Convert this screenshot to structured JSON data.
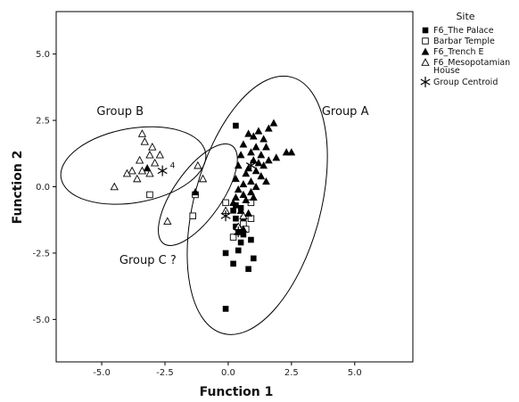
{
  "chart_data": {
    "type": "scatter",
    "xlabel": "Function 1",
    "ylabel": "Function 2",
    "xlim": [
      -6.8,
      7.3
    ],
    "ylim": [
      -6.6,
      6.6
    ],
    "x_ticks": [
      "-5.0",
      "-2.5",
      "0.0",
      "2.5",
      "5.0"
    ],
    "y_ticks": [
      "5.0",
      "2.5",
      "0.0",
      "-2.5",
      "-5.0"
    ],
    "x_tick_values": [
      -5,
      -2.5,
      0,
      2.5,
      5
    ],
    "y_tick_values": [
      5,
      2.5,
      0,
      -2.5,
      -5
    ],
    "grid": false,
    "legend": {
      "title": "Site",
      "placement": "right",
      "entries": [
        {
          "label": "F6_The Palace",
          "marker": "filled-square"
        },
        {
          "label": "Barbar Temple",
          "marker": "open-square"
        },
        {
          "label": "F6_Trench E",
          "marker": "filled-triangle"
        },
        {
          "label": "F6_Mesopotamian House",
          "marker": "open-triangle"
        },
        {
          "label": "Group Centroid",
          "marker": "star"
        }
      ]
    },
    "series": [
      {
        "name": "F6_The Palace",
        "marker": "filled-square",
        "points": [
          [
            0.3,
            2.3
          ],
          [
            0.3,
            -0.7
          ],
          [
            0.5,
            -0.8
          ],
          [
            0.2,
            -0.9
          ],
          [
            0.3,
            -1.2
          ],
          [
            0.6,
            -1.2
          ],
          [
            0.4,
            -1.7
          ],
          [
            0.6,
            -1.8
          ],
          [
            0.2,
            -1.9
          ],
          [
            0.5,
            -2.1
          ],
          [
            0.9,
            -2.0
          ],
          [
            0.4,
            -2.4
          ],
          [
            -0.1,
            -2.5
          ],
          [
            0.2,
            -2.9
          ],
          [
            1.0,
            -2.7
          ],
          [
            0.8,
            -3.1
          ],
          [
            -0.1,
            -4.6
          ],
          [
            0.3,
            -1.5
          ]
        ]
      },
      {
        "name": "Barbar Temple",
        "marker": "open-square",
        "points": [
          [
            -3.1,
            -0.3
          ],
          [
            -1.3,
            -0.3
          ],
          [
            -1.4,
            -1.1
          ],
          [
            -0.1,
            -0.6
          ],
          [
            0.9,
            -0.6
          ],
          [
            0.9,
            -1.2
          ],
          [
            0.6,
            -1.4
          ],
          [
            0.2,
            -1.9
          ],
          [
            0.7,
            -1.6
          ]
        ]
      },
      {
        "name": "F6_Trench E",
        "marker": "filled-triangle",
        "points": [
          [
            -3.2,
            0.7
          ],
          [
            -1.3,
            -0.2
          ],
          [
            1.8,
            2.4
          ],
          [
            1.6,
            2.2
          ],
          [
            1.2,
            2.1
          ],
          [
            0.8,
            2.0
          ],
          [
            1.0,
            1.9
          ],
          [
            1.4,
            1.8
          ],
          [
            0.6,
            1.6
          ],
          [
            1.1,
            1.5
          ],
          [
            1.5,
            1.5
          ],
          [
            0.9,
            1.3
          ],
          [
            1.3,
            1.2
          ],
          [
            0.5,
            1.2
          ],
          [
            2.3,
            1.3
          ],
          [
            2.5,
            1.3
          ],
          [
            1.9,
            1.1
          ],
          [
            1.0,
            1.0
          ],
          [
            1.6,
            1.0
          ],
          [
            1.2,
            0.9
          ],
          [
            0.4,
            0.8
          ],
          [
            0.8,
            0.7
          ],
          [
            1.4,
            0.8
          ],
          [
            1.1,
            0.6
          ],
          [
            0.7,
            0.5
          ],
          [
            1.3,
            0.4
          ],
          [
            0.3,
            0.3
          ],
          [
            0.9,
            0.2
          ],
          [
            1.5,
            0.2
          ],
          [
            0.6,
            0.1
          ],
          [
            1.1,
            0.0
          ],
          [
            0.4,
            -0.1
          ],
          [
            0.9,
            -0.2
          ],
          [
            0.6,
            -0.3
          ],
          [
            0.3,
            -0.4
          ],
          [
            1.0,
            -0.4
          ],
          [
            0.2,
            -0.6
          ],
          [
            0.7,
            -0.5
          ],
          [
            0.5,
            -0.9
          ],
          [
            0.8,
            -1.0
          ],
          [
            0.6,
            -1.6
          ],
          [
            0.4,
            -1.7
          ]
        ]
      },
      {
        "name": "F6_Mesopotamian House",
        "marker": "open-triangle",
        "points": [
          [
            -3.4,
            2.0
          ],
          [
            -3.3,
            1.7
          ],
          [
            -3.0,
            1.5
          ],
          [
            -3.1,
            1.2
          ],
          [
            -2.7,
            1.2
          ],
          [
            -3.5,
            1.0
          ],
          [
            -2.9,
            0.9
          ],
          [
            -3.8,
            0.6
          ],
          [
            -3.4,
            0.6
          ],
          [
            -3.1,
            0.5
          ],
          [
            -4.0,
            0.5
          ],
          [
            -3.6,
            0.3
          ],
          [
            -4.5,
            0.0
          ],
          [
            -1.2,
            0.8
          ],
          [
            -1.0,
            0.3
          ],
          [
            -2.4,
            -1.3
          ],
          [
            -0.1,
            -0.9
          ],
          [
            0.6,
            -1.1
          ],
          [
            0.4,
            -1.5
          ]
        ]
      },
      {
        "name": "Group Centroid",
        "marker": "star",
        "points": [
          [
            -2.6,
            0.6
          ],
          [
            -0.1,
            -1.1
          ],
          [
            0.4,
            -1.7
          ],
          [
            0.9,
            0.8
          ]
        ]
      }
    ],
    "annotations": [
      {
        "text": "Group B",
        "x": -5.2,
        "y": 2.7
      },
      {
        "text": "Group A",
        "x": 3.7,
        "y": 2.7
      },
      {
        "text": "Group C ?",
        "x": -4.3,
        "y": -2.9
      },
      {
        "text": "4",
        "x": -2.3,
        "y": 0.7
      }
    ],
    "ellipses": [
      {
        "label": "Group B",
        "cx": -3.75,
        "cy": 0.8,
        "rx": 2.9,
        "ry": 1.4,
        "angle": -10
      },
      {
        "label": "Group C ?",
        "cx": -1.2,
        "cy": -0.3,
        "rx": 0.95,
        "ry": 2.25,
        "angle": 35
      },
      {
        "label": "Group A",
        "cx": 1.15,
        "cy": -0.7,
        "rx": 2.5,
        "ry": 5.0,
        "angle": 15
      }
    ]
  }
}
